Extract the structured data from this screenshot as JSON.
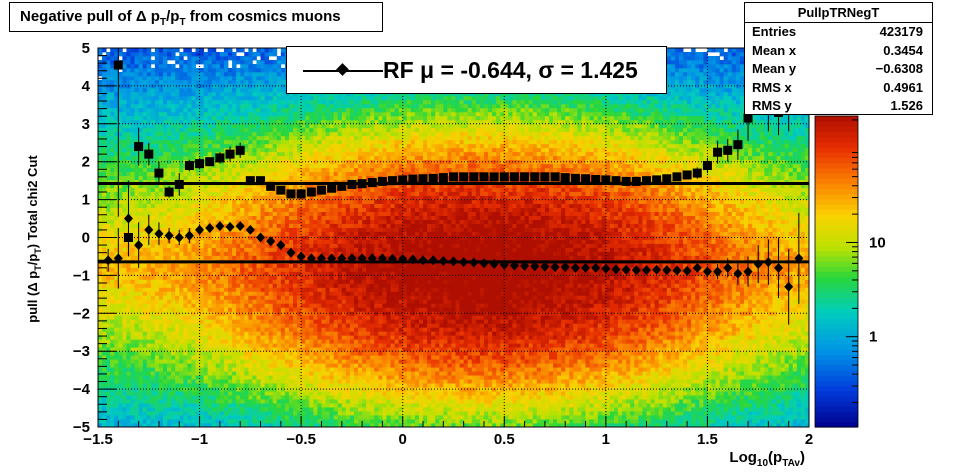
{
  "title": {
    "text_a": "Negative pull of ",
    "delta": "Δ",
    "text_b": " p",
    "sub1": "T",
    "text_c": "/p",
    "sub2": "T",
    "text_d": " from cosmics muons"
  },
  "stats": {
    "name": "PullpTRNegT",
    "rows": [
      {
        "label": "Entries",
        "value": "423179"
      },
      {
        "label": "Mean x",
        "value": "0.3454"
      },
      {
        "label": "Mean y",
        "value": "−0.6308"
      },
      {
        "label": "RMS x",
        "value": "0.4961"
      },
      {
        "label": "RMS y",
        "value": "1.526"
      }
    ]
  },
  "legend": {
    "text": "RF μ = -0.644, σ =   1.425"
  },
  "axes": {
    "y_label_a": "pull (Δ p",
    "y_sub1": "T",
    "y_label_b": "/p",
    "y_sub2": "T",
    "y_label_c": ")  Total chi2 Cut",
    "x_label_a": "Log",
    "x_sub1": "10",
    "x_label_b": "(p",
    "x_sub2": "TAv",
    "x_label_c": ")"
  },
  "chart_data": {
    "type": "heatmap",
    "xlim": [
      -1.5,
      2.0
    ],
    "ylim": [
      -5,
      5
    ],
    "x_ticks": [
      -1.5,
      -1,
      -0.5,
      0,
      0.5,
      1,
      1.5,
      2
    ],
    "x_tick_labels": [
      "−1.5",
      "−1",
      "−0.5",
      "0",
      "0.5",
      "1",
      "1.5",
      "2"
    ],
    "y_ticks": [
      -5,
      -4,
      -3,
      -2,
      -1,
      0,
      1,
      2,
      3,
      4,
      5
    ],
    "y_tick_labels": [
      "−5",
      "−4",
      "−3",
      "−2",
      "−1",
      "0",
      "1",
      "2",
      "3",
      "4",
      "5"
    ],
    "colorbar": {
      "scale": "log",
      "tick_values": [
        1,
        10
      ],
      "tick_labels": [
        "1",
        "10"
      ]
    },
    "grid": true,
    "density_center": {
      "x": 0.4,
      "y": -0.8
    },
    "reference_lines": {
      "mean": -0.644,
      "sigma": 1.425
    },
    "sigma_series": {
      "marker": "square",
      "x": [
        -1.4,
        -1.35,
        -1.3,
        -1.25,
        -1.2,
        -1.15,
        -1.1,
        -1.05,
        -1.0,
        -0.95,
        -0.9,
        -0.85,
        -0.8,
        -0.75,
        -0.7,
        -0.65,
        -0.6,
        -0.55,
        -0.5,
        -0.45,
        -0.4,
        -0.35,
        -0.3,
        -0.25,
        -0.2,
        -0.15,
        -0.1,
        -0.05,
        0.0,
        0.05,
        0.1,
        0.15,
        0.2,
        0.25,
        0.3,
        0.35,
        0.4,
        0.45,
        0.5,
        0.55,
        0.6,
        0.65,
        0.7,
        0.75,
        0.8,
        0.85,
        0.9,
        0.95,
        1.0,
        1.05,
        1.1,
        1.15,
        1.2,
        1.25,
        1.3,
        1.35,
        1.4,
        1.45,
        1.5,
        1.55,
        1.6,
        1.65,
        1.7,
        1.75,
        1.8,
        1.85,
        1.9,
        1.95
      ],
      "y": [
        4.55,
        0.0,
        2.4,
        2.2,
        1.7,
        1.2,
        1.4,
        1.9,
        1.95,
        2.0,
        2.1,
        2.2,
        2.3,
        1.5,
        1.5,
        1.35,
        1.25,
        1.15,
        1.15,
        1.2,
        1.25,
        1.3,
        1.35,
        1.4,
        1.42,
        1.45,
        1.48,
        1.5,
        1.52,
        1.54,
        1.55,
        1.56,
        1.58,
        1.6,
        1.6,
        1.6,
        1.6,
        1.6,
        1.6,
        1.6,
        1.6,
        1.6,
        1.6,
        1.6,
        1.58,
        1.56,
        1.55,
        1.53,
        1.52,
        1.5,
        1.48,
        1.48,
        1.5,
        1.52,
        1.55,
        1.6,
        1.65,
        1.7,
        1.9,
        2.25,
        2.3,
        2.45,
        3.15,
        4.0,
        3.4,
        3.3,
        3.5,
        4.7
      ],
      "yerr": [
        4.0,
        0.3,
        0.5,
        0.3,
        0.3,
        0.15,
        0.3,
        0.15,
        0.15,
        0.1,
        0.15,
        0.2,
        0.2,
        0.08,
        0.08,
        0.05,
        0.04,
        0.04,
        0.03,
        0.03,
        0.03,
        0.03,
        0.03,
        0.03,
        0.02,
        0.02,
        0.02,
        0.02,
        0.02,
        0.02,
        0.02,
        0.02,
        0.02,
        0.02,
        0.02,
        0.02,
        0.02,
        0.02,
        0.02,
        0.02,
        0.02,
        0.02,
        0.02,
        0.02,
        0.02,
        0.02,
        0.02,
        0.02,
        0.03,
        0.03,
        0.03,
        0.04,
        0.05,
        0.05,
        0.06,
        0.08,
        0.1,
        0.15,
        0.2,
        0.3,
        0.3,
        0.4,
        0.6,
        0.7,
        0.6,
        0.6,
        0.7,
        0.8
      ]
    },
    "mean_series": {
      "marker": "diamond",
      "x": [
        -1.45,
        -1.4,
        -1.35,
        -1.3,
        -1.25,
        -1.2,
        -1.15,
        -1.1,
        -1.05,
        -1.0,
        -0.95,
        -0.9,
        -0.85,
        -0.8,
        -0.75,
        -0.7,
        -0.65,
        -0.6,
        -0.55,
        -0.5,
        -0.45,
        -0.4,
        -0.35,
        -0.3,
        -0.25,
        -0.2,
        -0.15,
        -0.1,
        -0.05,
        0.0,
        0.05,
        0.1,
        0.15,
        0.2,
        0.25,
        0.3,
        0.35,
        0.4,
        0.45,
        0.5,
        0.55,
        0.6,
        0.65,
        0.7,
        0.75,
        0.8,
        0.85,
        0.9,
        0.95,
        1.0,
        1.05,
        1.1,
        1.15,
        1.2,
        1.25,
        1.3,
        1.35,
        1.4,
        1.45,
        1.5,
        1.55,
        1.6,
        1.65,
        1.7,
        1.75,
        1.8,
        1.85,
        1.9,
        1.95
      ],
      "y": [
        -0.6,
        -0.55,
        0.5,
        -0.2,
        0.2,
        0.1,
        0.05,
        0.0,
        0.05,
        0.2,
        0.25,
        0.3,
        0.28,
        0.3,
        0.2,
        0.0,
        -0.1,
        -0.2,
        -0.4,
        -0.5,
        -0.55,
        -0.55,
        -0.55,
        -0.55,
        -0.55,
        -0.55,
        -0.55,
        -0.55,
        -0.56,
        -0.57,
        -0.58,
        -0.6,
        -0.6,
        -0.62,
        -0.63,
        -0.65,
        -0.66,
        -0.68,
        -0.7,
        -0.72,
        -0.74,
        -0.75,
        -0.76,
        -0.77,
        -0.78,
        -0.78,
        -0.8,
        -0.8,
        -0.8,
        -0.82,
        -0.84,
        -0.85,
        -0.86,
        -0.86,
        -0.85,
        -0.86,
        -0.87,
        -0.88,
        -0.8,
        -0.9,
        -0.9,
        -0.8,
        -0.95,
        -0.9,
        -0.7,
        -0.65,
        -0.8,
        -1.3,
        -0.55
      ],
      "yerr": [
        0.3,
        0.8,
        1.0,
        0.6,
        0.4,
        0.3,
        0.2,
        0.2,
        0.2,
        0.15,
        0.12,
        0.12,
        0.12,
        0.1,
        0.1,
        0.08,
        0.06,
        0.05,
        0.04,
        0.03,
        0.03,
        0.03,
        0.02,
        0.02,
        0.02,
        0.02,
        0.02,
        0.02,
        0.02,
        0.02,
        0.02,
        0.02,
        0.02,
        0.02,
        0.02,
        0.02,
        0.02,
        0.02,
        0.02,
        0.02,
        0.02,
        0.02,
        0.02,
        0.02,
        0.02,
        0.02,
        0.02,
        0.02,
        0.02,
        0.02,
        0.02,
        0.03,
        0.03,
        0.03,
        0.04,
        0.05,
        0.06,
        0.08,
        0.1,
        0.15,
        0.2,
        0.25,
        0.3,
        0.4,
        0.5,
        0.6,
        0.8,
        1.0,
        1.2
      ]
    }
  }
}
